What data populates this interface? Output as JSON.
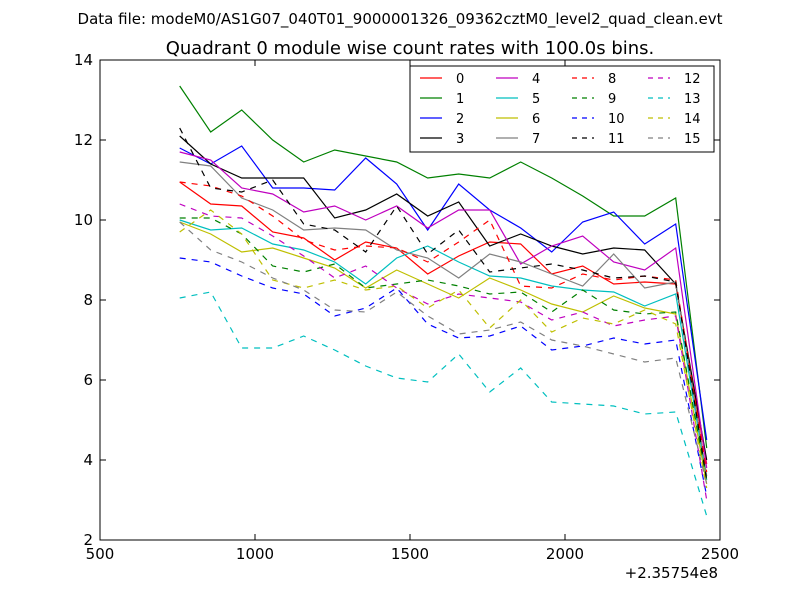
{
  "chart_data": {
    "type": "line",
    "suptitle": "Data file: modeM0/AS1G07_040T01_9000001326_09362cztM0_level2_quad_clean.evt",
    "title": "Quadrant 0 module wise count rates with 100.0s bins.",
    "xlabel": "",
    "ylabel": "",
    "x_offset_label": "+2.35754e8",
    "xlim": [
      500,
      2500
    ],
    "ylim": [
      2,
      14
    ],
    "xticks": [
      500,
      1000,
      1500,
      2000,
      2500
    ],
    "yticks": [
      2,
      4,
      6,
      8,
      10,
      12,
      14
    ],
    "grid": false,
    "legend_position": "top-right",
    "legend_columns": 4,
    "x": [
      757,
      857,
      957,
      1057,
      1157,
      1257,
      1357,
      1457,
      1557,
      1657,
      1757,
      1857,
      1957,
      2057,
      2157,
      2257,
      2357,
      2457
    ],
    "series": [
      {
        "name": "0",
        "color": "#ff0000",
        "dash": "solid",
        "values": [
          10.95,
          10.4,
          10.35,
          9.7,
          9.55,
          9.0,
          9.45,
          9.3,
          8.65,
          9.1,
          9.45,
          9.4,
          8.65,
          8.85,
          8.4,
          8.45,
          8.4,
          3.9
        ]
      },
      {
        "name": "1",
        "color": "#008000",
        "dash": "solid",
        "values": [
          13.35,
          12.2,
          12.75,
          12.0,
          11.45,
          11.75,
          11.6,
          11.45,
          11.05,
          11.15,
          11.05,
          11.45,
          11.05,
          10.6,
          10.1,
          10.1,
          10.55,
          4.3
        ]
      },
      {
        "name": "2",
        "color": "#0000ff",
        "dash": "solid",
        "values": [
          11.8,
          11.4,
          11.85,
          10.8,
          10.8,
          10.75,
          11.55,
          10.9,
          9.75,
          10.9,
          10.25,
          9.8,
          9.2,
          9.95,
          10.2,
          9.4,
          9.9,
          4.5
        ]
      },
      {
        "name": "3",
        "color": "#000000",
        "dash": "solid",
        "values": [
          12.1,
          11.4,
          11.05,
          11.05,
          11.05,
          10.05,
          10.25,
          10.65,
          10.1,
          10.45,
          9.35,
          9.65,
          9.35,
          9.15,
          9.3,
          9.25,
          8.4,
          4.0
        ]
      },
      {
        "name": "4",
        "color": "#bf00bf",
        "dash": "solid",
        "values": [
          11.7,
          11.5,
          10.8,
          10.65,
          10.2,
          10.35,
          10.0,
          10.35,
          9.8,
          10.25,
          10.25,
          8.9,
          9.35,
          9.6,
          8.95,
          8.75,
          9.3,
          3.8
        ]
      },
      {
        "name": "5",
        "color": "#00bfbf",
        "dash": "solid",
        "values": [
          10.0,
          9.75,
          9.8,
          9.4,
          9.25,
          8.95,
          8.4,
          9.05,
          9.35,
          8.95,
          8.6,
          8.55,
          8.35,
          8.25,
          8.2,
          7.85,
          8.15,
          3.5
        ]
      },
      {
        "name": "6",
        "color": "#bfbf00",
        "dash": "solid",
        "values": [
          9.95,
          9.65,
          9.2,
          9.3,
          9.05,
          8.8,
          8.3,
          8.75,
          8.4,
          8.05,
          8.55,
          8.25,
          7.9,
          7.7,
          8.1,
          7.8,
          7.65,
          3.4
        ]
      },
      {
        "name": "7",
        "color": "#808080",
        "dash": "solid",
        "values": [
          11.45,
          11.35,
          10.55,
          10.25,
          9.75,
          9.8,
          9.75,
          9.25,
          9.05,
          8.55,
          9.15,
          8.95,
          8.65,
          8.35,
          9.15,
          8.3,
          8.45,
          3.6
        ]
      },
      {
        "name": "8",
        "color": "#ff0000",
        "dash": "dashed",
        "values": [
          10.95,
          10.85,
          10.6,
          10.1,
          9.5,
          9.25,
          9.35,
          9.3,
          8.95,
          9.45,
          10.0,
          8.35,
          8.3,
          8.65,
          8.5,
          8.6,
          8.5,
          3.7
        ]
      },
      {
        "name": "9",
        "color": "#008000",
        "dash": "dashed",
        "values": [
          10.05,
          10.05,
          9.65,
          8.85,
          8.7,
          8.9,
          8.3,
          8.4,
          8.5,
          8.35,
          8.15,
          8.2,
          7.7,
          8.25,
          7.75,
          7.65,
          7.7,
          3.5
        ]
      },
      {
        "name": "10",
        "color": "#0000ff",
        "dash": "dashed",
        "values": [
          9.05,
          8.95,
          8.6,
          8.3,
          8.15,
          7.6,
          7.8,
          8.3,
          7.4,
          7.05,
          7.1,
          7.35,
          6.75,
          6.85,
          7.05,
          6.9,
          7.0,
          3.1
        ]
      },
      {
        "name": "11",
        "color": "#000000",
        "dash": "dashed",
        "values": [
          12.3,
          10.8,
          10.7,
          11.0,
          9.9,
          9.75,
          9.2,
          10.35,
          9.15,
          9.75,
          8.7,
          8.8,
          8.9,
          8.75,
          8.55,
          8.6,
          8.45,
          3.5
        ]
      },
      {
        "name": "12",
        "color": "#bf00bf",
        "dash": "dashed",
        "values": [
          10.4,
          10.1,
          10.05,
          9.6,
          9.1,
          8.55,
          8.85,
          8.3,
          7.9,
          8.15,
          8.05,
          7.95,
          7.5,
          7.7,
          7.35,
          7.5,
          7.6,
          3.0
        ]
      },
      {
        "name": "13",
        "color": "#00bfbf",
        "dash": "dashed",
        "values": [
          8.05,
          8.2,
          6.8,
          6.8,
          7.1,
          6.75,
          6.35,
          6.05,
          5.95,
          6.65,
          5.7,
          6.3,
          5.45,
          5.4,
          5.35,
          5.15,
          5.2,
          2.6
        ]
      },
      {
        "name": "14",
        "color": "#bfbf00",
        "dash": "dashed",
        "values": [
          9.7,
          10.25,
          9.65,
          8.5,
          8.3,
          8.5,
          8.25,
          8.35,
          7.8,
          8.25,
          7.3,
          8.0,
          7.2,
          7.55,
          7.4,
          7.75,
          7.4,
          3.3
        ]
      },
      {
        "name": "15",
        "color": "#808080",
        "dash": "dashed",
        "values": [
          9.95,
          9.25,
          8.95,
          8.55,
          8.25,
          7.75,
          7.7,
          8.2,
          7.6,
          7.15,
          7.25,
          7.45,
          7.0,
          6.85,
          6.65,
          6.45,
          6.55,
          3.4
        ]
      }
    ]
  }
}
